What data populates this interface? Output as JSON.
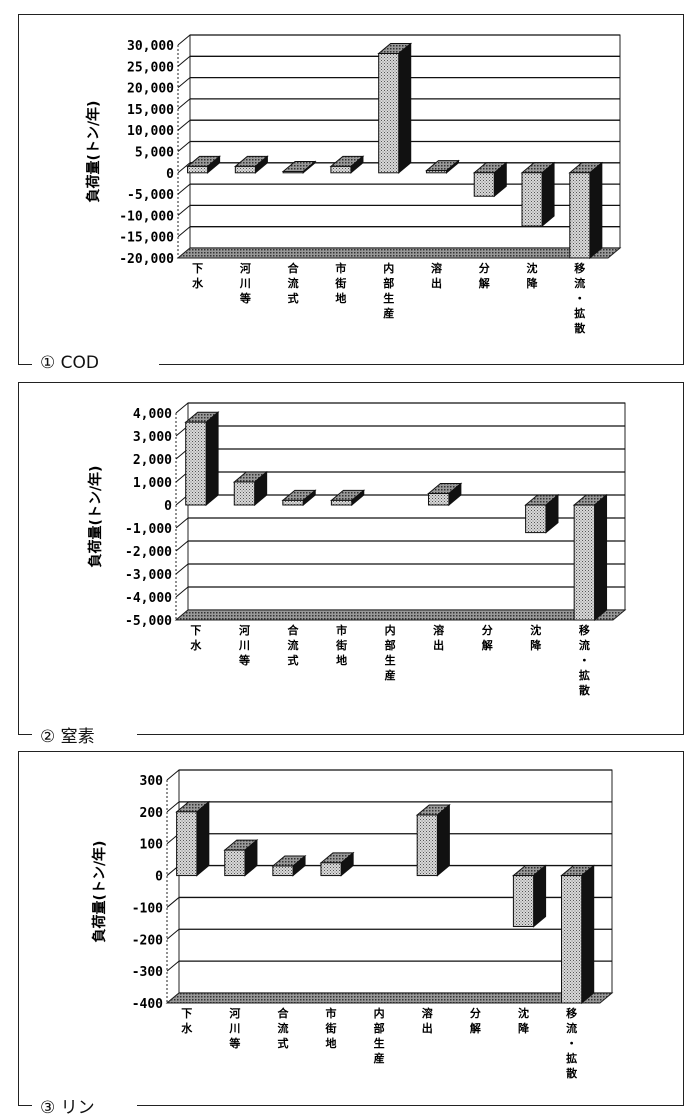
{
  "chart_data": [
    {
      "type": "bar",
      "title": "① COD",
      "ylabel": "負荷量(トン/年)",
      "ylim": [
        -20000,
        30000
      ],
      "yticks": [
        30000,
        25000,
        20000,
        15000,
        10000,
        5000,
        0,
        -5000,
        -10000,
        -15000,
        -20000
      ],
      "ytick_labels": [
        "30,000",
        "25,000",
        "20,000",
        "15,000",
        "10,000",
        "5,000",
        "0",
        "-5,000",
        "-10,000",
        "-15,000",
        "-20,000"
      ],
      "categories": [
        "下水",
        "河川等",
        "合流式",
        "市街地",
        "内部生産",
        "溶出",
        "分解",
        "沈降",
        "移流・拡散"
      ],
      "values": [
        1500,
        1500,
        300,
        1500,
        28000,
        500,
        -5500,
        -12500,
        -20000
      ]
    },
    {
      "type": "bar",
      "title": "② 窒素",
      "ylabel": "負荷量(トン/年)",
      "ylim": [
        -5000,
        4000
      ],
      "yticks": [
        4000,
        3000,
        2000,
        1000,
        0,
        -1000,
        -2000,
        -3000,
        -4000,
        -5000
      ],
      "ytick_labels": [
        "4,000",
        "3,000",
        "2,000",
        "1,000",
        "0",
        "-1,000",
        "-2,000",
        "-3,000",
        "-4,000",
        "-5,000"
      ],
      "categories": [
        "下水",
        "河川等",
        "合流式",
        "市街地",
        "内部生産",
        "溶出",
        "分解",
        "沈降",
        "移流・拡散"
      ],
      "values": [
        3600,
        1000,
        200,
        200,
        0,
        500,
        0,
        -1200,
        -5000
      ]
    },
    {
      "type": "bar",
      "title": "③ リン",
      "ylabel": "負荷量(トン/年)",
      "ylim": [
        -400,
        300
      ],
      "yticks": [
        300,
        200,
        100,
        0,
        -100,
        -200,
        -300,
        -400
      ],
      "ytick_labels": [
        "300",
        "200",
        "100",
        "0",
        "-100",
        "-200",
        "-300",
        "-400"
      ],
      "categories": [
        "下水",
        "河川等",
        "合流式",
        "市街地",
        "内部生産",
        "溶出",
        "分解",
        "沈降",
        "移流・拡散"
      ],
      "values": [
        200,
        80,
        30,
        40,
        0,
        190,
        0,
        -160,
        -400
      ]
    }
  ]
}
